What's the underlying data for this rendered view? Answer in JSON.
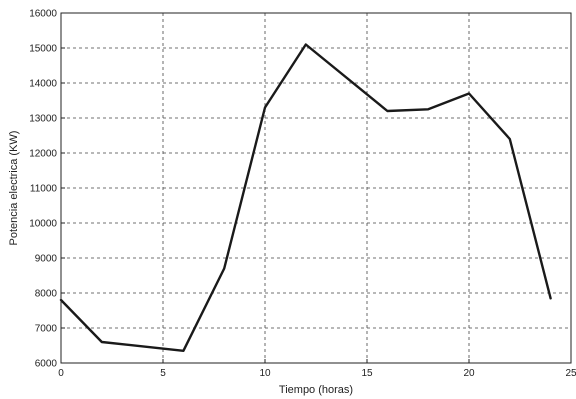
{
  "chart_data": {
    "type": "line",
    "title": "",
    "xlabel": "Tiempo (horas)",
    "ylabel": "Potencia electrica (KW)",
    "xlim": [
      0,
      25
    ],
    "ylim": [
      6000,
      16000
    ],
    "xticks": [
      0,
      5,
      10,
      15,
      20,
      25
    ],
    "yticks": [
      6000,
      7000,
      8000,
      9000,
      10000,
      11000,
      12000,
      13000,
      14000,
      15000,
      16000
    ],
    "grid": true,
    "series": [
      {
        "color": "#1a1a1a",
        "x": [
          0,
          2,
          6,
          8,
          10,
          12,
          16,
          18,
          20,
          22,
          24
        ],
        "y": [
          7800,
          6600,
          6350,
          8700,
          13300,
          15100,
          13200,
          13250,
          13700,
          12400,
          7850
        ]
      }
    ]
  }
}
